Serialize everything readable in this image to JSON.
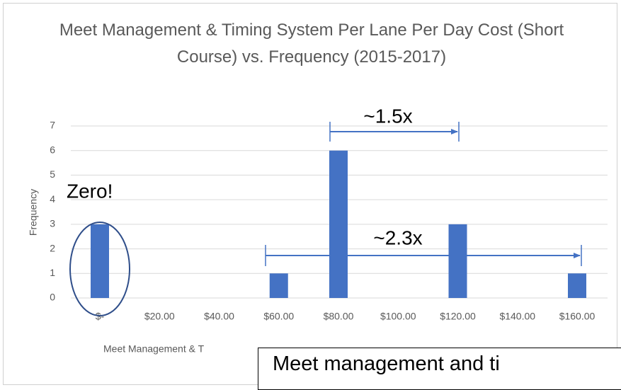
{
  "chart_data": {
    "type": "bar",
    "title": "Meet Management & Timing System Per Lane Per Day  Cost (Short Course) vs. Frequency (2015-2017)",
    "y_label": "Frequency",
    "x_label": "Meet Management & T",
    "categories": [
      "$-",
      "$20.00",
      "$40.00",
      "$60.00",
      "$80.00",
      "$100.00",
      "$120.00",
      "$140.00",
      "$160.00"
    ],
    "values": [
      3,
      0,
      0,
      1,
      6,
      0,
      3,
      0,
      1
    ],
    "color": "#4472c4",
    "ylim": [
      0,
      7
    ],
    "yticks": [
      0,
      1,
      2,
      3,
      4,
      5,
      6,
      7
    ],
    "grid": true,
    "annotations": [
      "~1.5x",
      "~2.3x",
      "Zero!"
    ],
    "text_box": "Meet management and ti"
  }
}
